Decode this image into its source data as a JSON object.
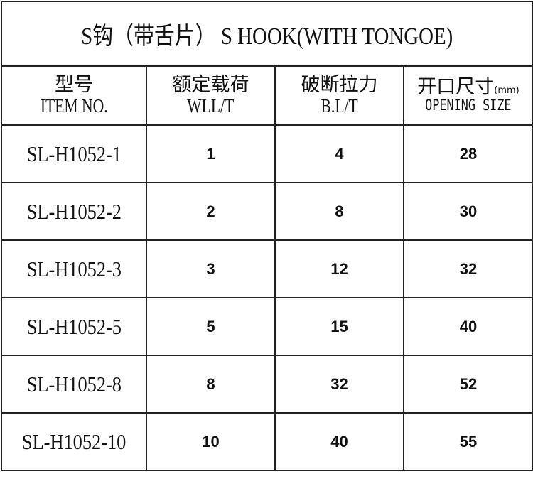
{
  "title": "S钩（带舌片） S HOOK(WITH TONGOE)",
  "headers": [
    {
      "cn": "型号",
      "en": "ITEM NO.",
      "unit": ""
    },
    {
      "cn": "额定载荷",
      "en": "WLL/T",
      "unit": ""
    },
    {
      "cn": "破断拉力",
      "en": "B.L/T",
      "unit": ""
    },
    {
      "cn": "开口尺寸",
      "en": "OPENING SIZE",
      "unit": "(mm)"
    }
  ],
  "rows": [
    [
      "SL-H1052-1",
      "1",
      "4",
      "28"
    ],
    [
      "SL-H1052-2",
      "2",
      "8",
      "30"
    ],
    [
      "SL-H1052-3",
      "3",
      "12",
      "32"
    ],
    [
      "SL-H1052-5",
      "5",
      "15",
      "40"
    ],
    [
      "SL-H1052-8",
      "8",
      "32",
      "52"
    ],
    [
      "SL-H1052-10",
      "10",
      "40",
      "55"
    ]
  ]
}
